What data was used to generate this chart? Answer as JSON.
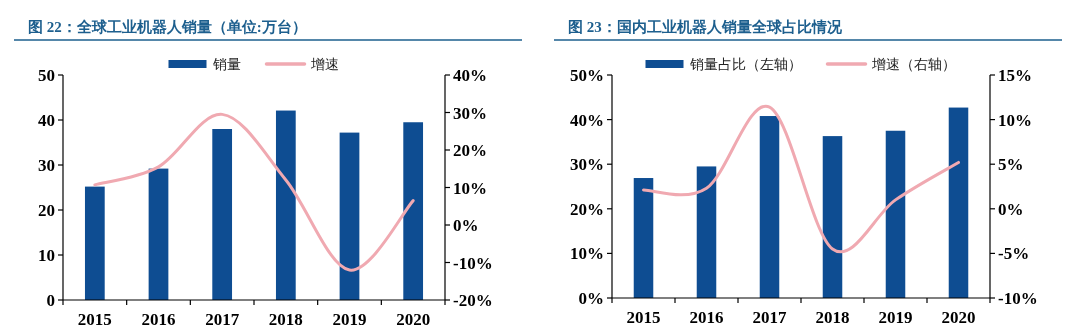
{
  "chart_data": [
    {
      "type": "bar",
      "title": "图 22：全球工业机器人销量（单位:万台）",
      "categories": [
        "2015",
        "2016",
        "2017",
        "2018",
        "2019",
        "2020"
      ],
      "series": [
        {
          "name": "销量",
          "color": "#0e4d92",
          "values": [
            25.2,
            29.2,
            38,
            42.1,
            37.2,
            39.5
          ]
        },
        {
          "name": "增速",
          "type": "line",
          "axis": "y2",
          "color": "#f0a9b1",
          "values": [
            10.7,
            15.5,
            29.5,
            12,
            -12,
            6.5
          ]
        }
      ],
      "ylim": [
        0,
        50
      ],
      "yticks": [
        0,
        10,
        20,
        30,
        40,
        50
      ],
      "y2lim": [
        -20,
        40
      ],
      "y2ticks": [
        {
          "value": -20,
          "label": "-20%"
        },
        {
          "value": -10,
          "label": "-10%"
        },
        {
          "value": 0,
          "label": "0%"
        },
        {
          "value": 10,
          "label": "10%"
        },
        {
          "value": 20,
          "label": "20%"
        },
        {
          "value": 30,
          "label": "30%"
        },
        {
          "value": 40,
          "label": "40%"
        }
      ],
      "legend": "top",
      "grid": false,
      "marker": "none"
    },
    {
      "type": "bar",
      "title": "图 23：国内工业机器人销量全球占比情况",
      "categories": [
        "2015",
        "2016",
        "2017",
        "2018",
        "2019",
        "2020"
      ],
      "series": [
        {
          "name": "销量占比（左轴）",
          "color": "#0e4d92",
          "values": [
            26.9,
            29.5,
            40.8,
            36.3,
            37.5,
            42.7
          ]
        },
        {
          "name": "增速（右轴）",
          "type": "line",
          "axis": "y2",
          "color": "#f0a9b1",
          "values": [
            2.1,
            2.3,
            11.4,
            -4.5,
            1,
            5.2
          ]
        }
      ],
      "ylim": [
        0,
        50
      ],
      "yticks": [
        {
          "value": 0,
          "label": "0%"
        },
        {
          "value": 10,
          "label": "10%"
        },
        {
          "value": 20,
          "label": "20%"
        },
        {
          "value": 30,
          "label": "30%"
        },
        {
          "value": 40,
          "label": "40%"
        },
        {
          "value": 50,
          "label": "50%"
        }
      ],
      "y2lim": [
        -10,
        15
      ],
      "y2ticks": [
        {
          "value": -10,
          "label": "-10%"
        },
        {
          "value": -5,
          "label": "-5%"
        },
        {
          "value": 0,
          "label": "0%"
        },
        {
          "value": 5,
          "label": "5%"
        },
        {
          "value": 10,
          "label": "10%"
        },
        {
          "value": 15,
          "label": "15%"
        }
      ],
      "legend": "top",
      "grid": false,
      "marker": "none"
    }
  ]
}
